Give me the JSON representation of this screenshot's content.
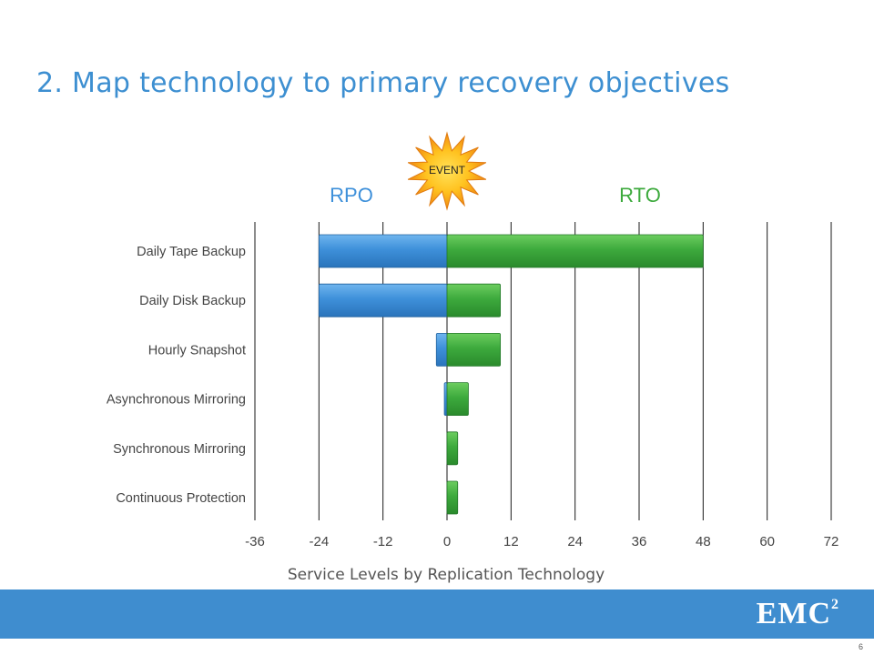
{
  "slide": {
    "title": "2. Map technology to primary recovery objectives",
    "page_number": "6",
    "logo_text": "EMC",
    "logo_superscript": "2"
  },
  "chart_data": {
    "type": "bar",
    "orientation": "horizontal",
    "stacked": true,
    "xlabel": "Service Levels by Replication Technology",
    "xlim": [
      -36,
      72
    ],
    "xticks": [
      -36,
      -24,
      -12,
      0,
      12,
      24,
      36,
      48,
      60,
      72
    ],
    "grid": true,
    "categories": [
      "Daily Tape Backup",
      "Daily Disk Backup",
      "Hourly Snapshot",
      "Asynchronous Mirroring",
      "Synchronous Mirroring",
      "Continuous Protection"
    ],
    "series": [
      {
        "name": "RPO",
        "color": "#3e90da",
        "values": [
          -24,
          -24,
          -2,
          -0.5,
          0,
          0
        ]
      },
      {
        "name": "RTO",
        "color": "#3daa3d",
        "values": [
          48,
          10,
          10,
          4,
          2,
          2
        ]
      }
    ],
    "event_label": "EVENT"
  }
}
